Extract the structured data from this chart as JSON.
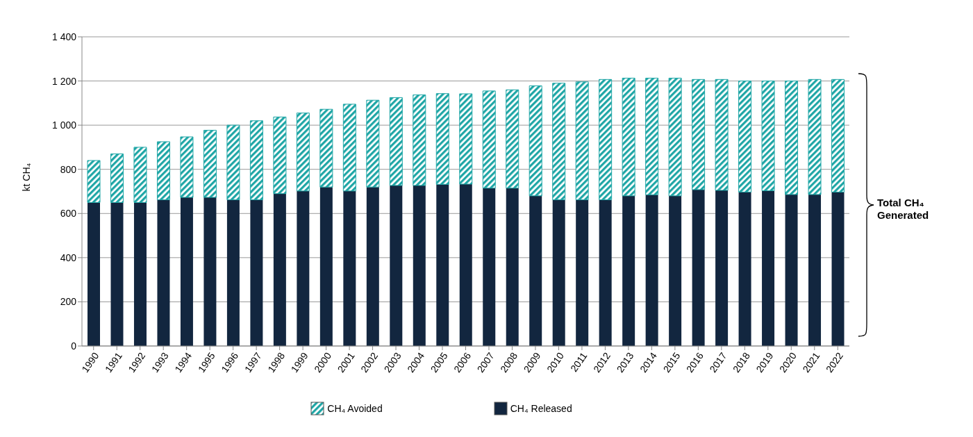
{
  "chart_data": {
    "type": "bar",
    "stacked": true,
    "ylabel": "kt CH₄",
    "categories": [
      "1990",
      "1991",
      "1992",
      "1993",
      "1994",
      "1995",
      "1996",
      "1997",
      "1998",
      "1999",
      "2000",
      "2001",
      "2002",
      "2003",
      "2004",
      "2005",
      "2006",
      "2007",
      "2008",
      "2009",
      "2010",
      "2011",
      "2012",
      "2013",
      "2014",
      "2015",
      "2016",
      "2017",
      "2018",
      "2019",
      "2020",
      "2021",
      "2022"
    ],
    "series": [
      {
        "name": "CH₄ Released",
        "color": "#12263f",
        "values": [
          650,
          650,
          650,
          662,
          673,
          673,
          662,
          662,
          690,
          702,
          720,
          702,
          720,
          727,
          727,
          732,
          733,
          715,
          715,
          680,
          662,
          662,
          662,
          680,
          685,
          680,
          708,
          705,
          697,
          703,
          686,
          686,
          697
        ]
      },
      {
        "name": "CH₄ Avoided",
        "color": "#1fa6a6",
        "values": [
          190,
          220,
          250,
          263,
          274,
          304,
          338,
          358,
          347,
          353,
          352,
          393,
          393,
          398,
          410,
          411,
          409,
          440,
          445,
          498,
          528,
          534,
          545,
          533,
          528,
          533,
          499,
          502,
          503,
          497,
          514,
          521,
          510
        ]
      }
    ],
    "ylim": [
      0,
      1400
    ],
    "yticks": [
      0,
      200,
      400,
      600,
      800,
      {
        "value": 1000,
        "label": "1 000"
      },
      {
        "value": 1200,
        "label": "1 200"
      },
      {
        "value": 1400,
        "label": "1 400"
      }
    ],
    "grid": "y",
    "legend": "bottom",
    "annotations": [
      "Total CH₄ Generated"
    ]
  }
}
